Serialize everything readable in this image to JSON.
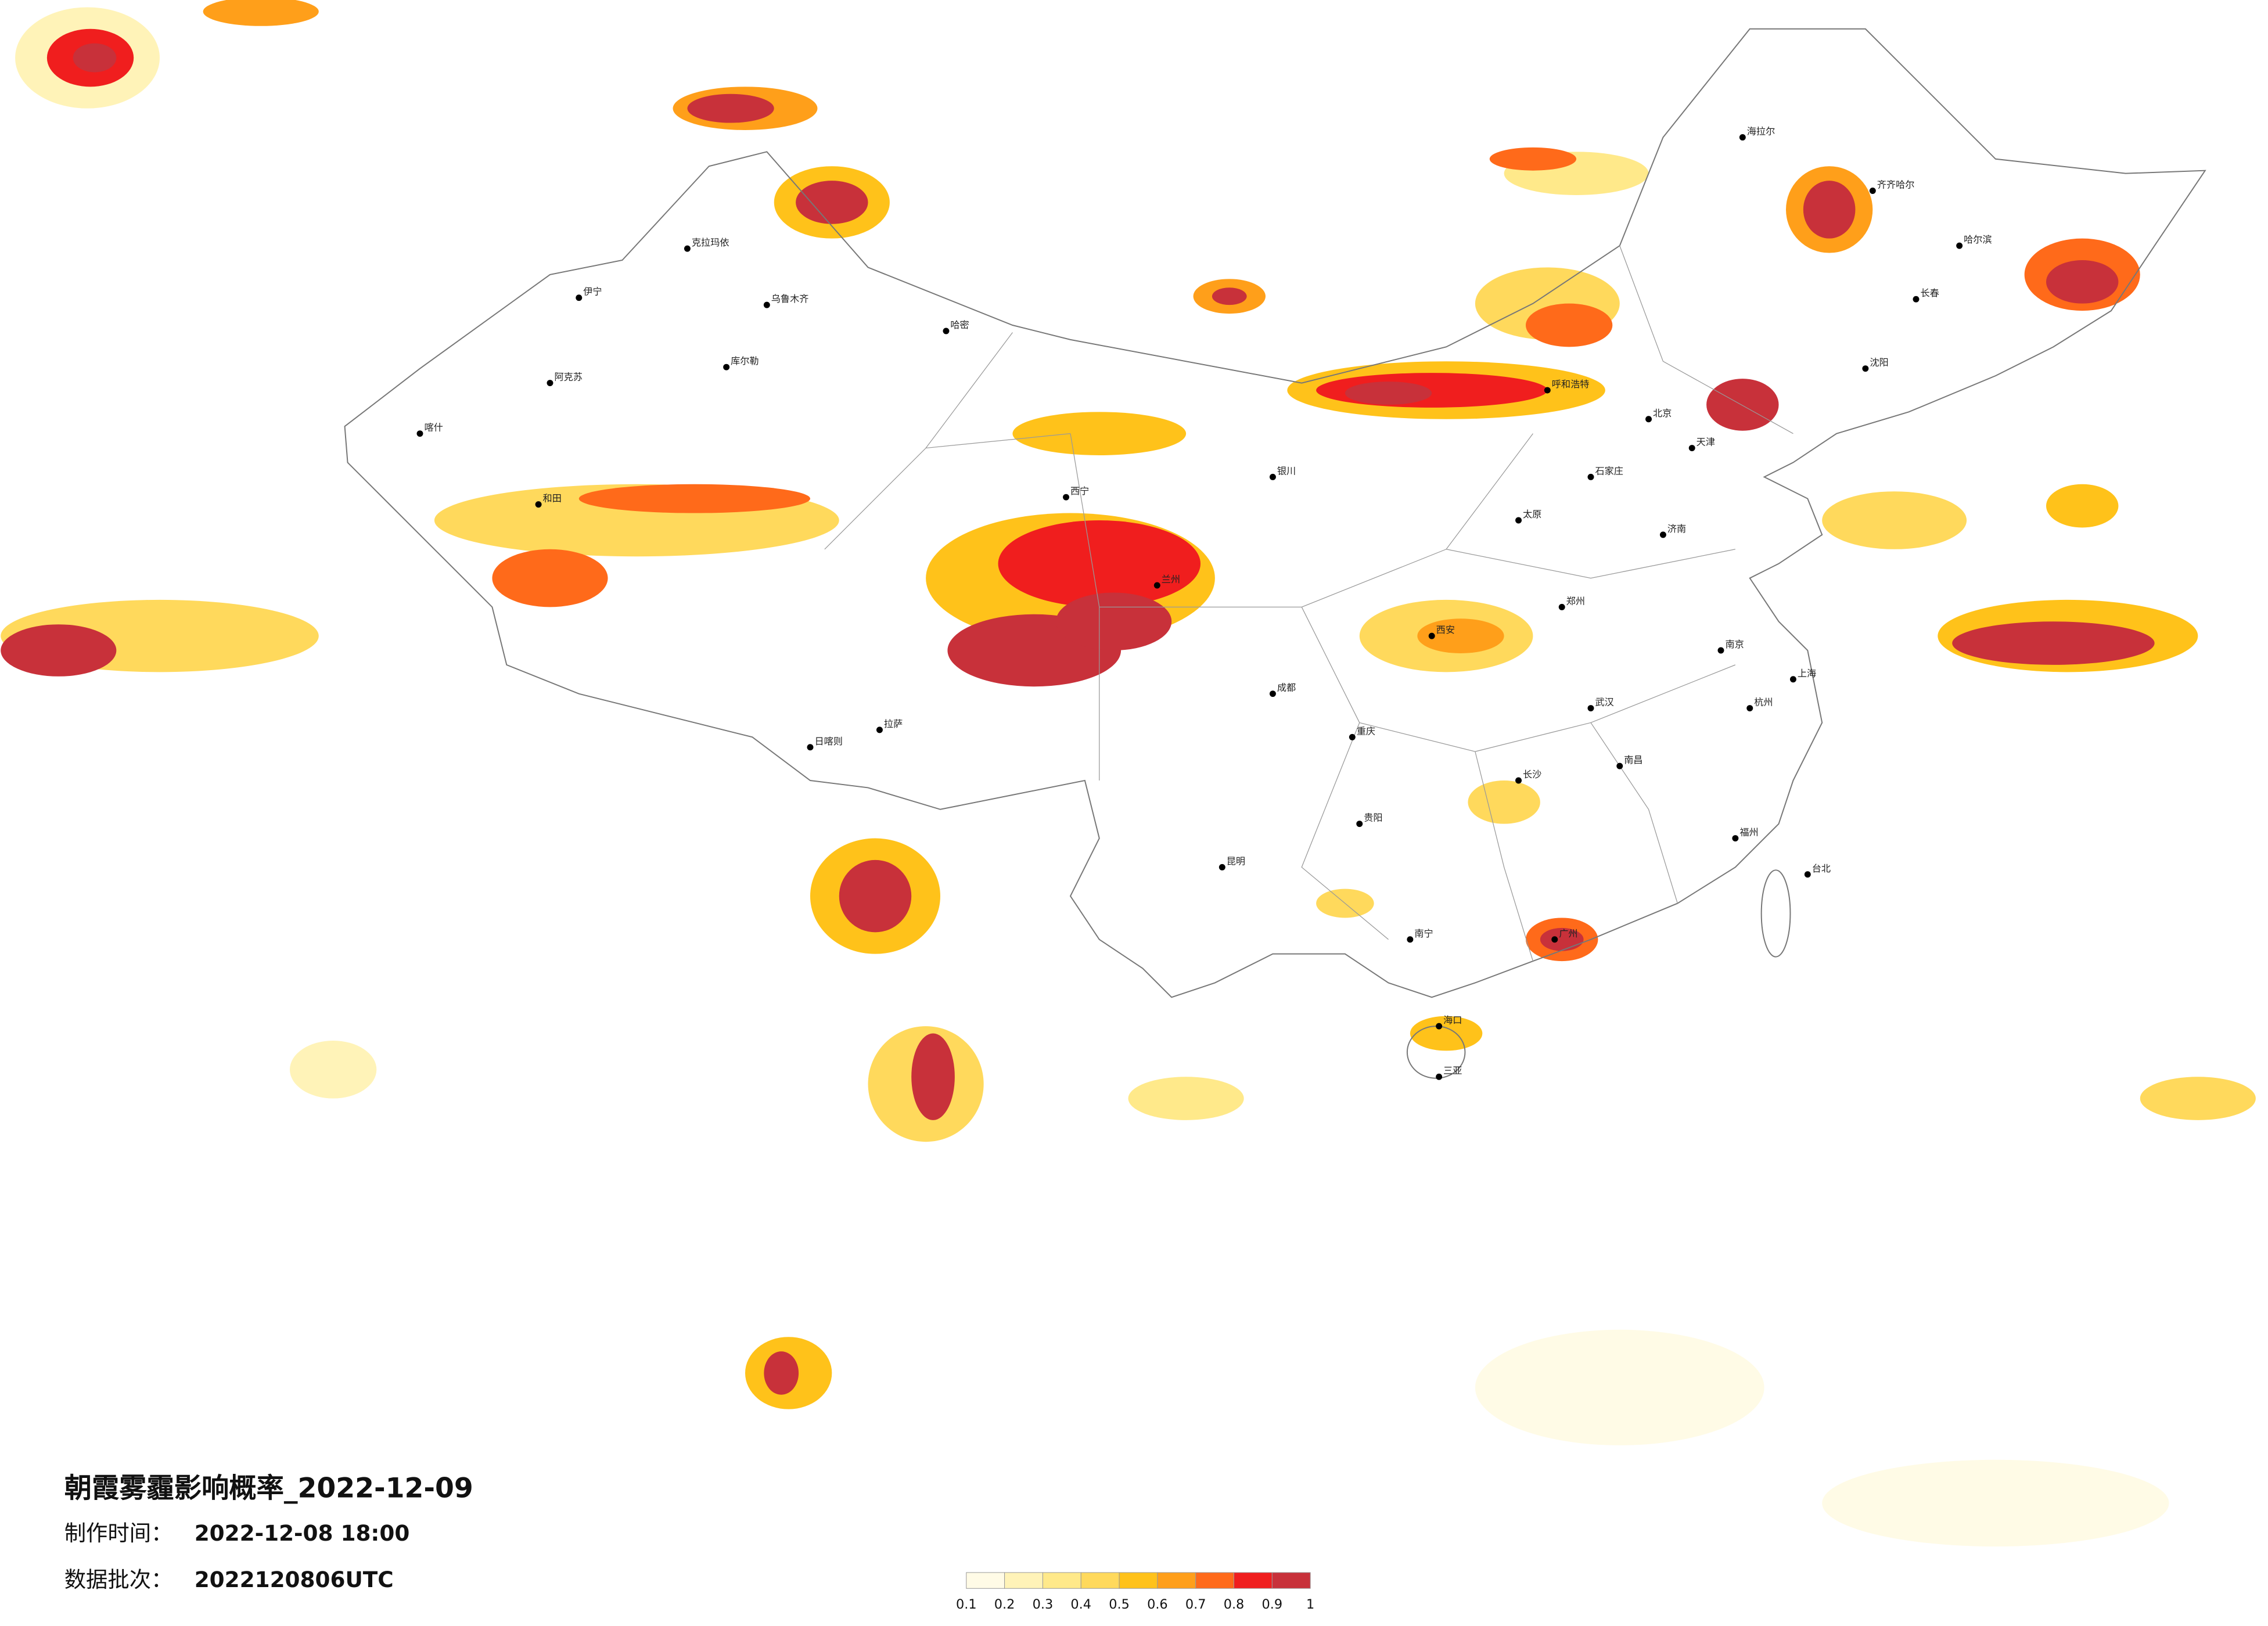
{
  "header": {
    "title": "朝霞雾霾影响概率_2022-12-09",
    "made_label": "制作时间：",
    "made_time": "2022-12-08 18:00",
    "batch_label": "数据批次：",
    "batch": "2022120806UTC"
  },
  "legend": {
    "colors": [
      "#fffbe6",
      "#fff3b8",
      "#ffe98a",
      "#ffd95c",
      "#ffc21a",
      "#ff9f1a",
      "#ff6a1a",
      "#f01e1e",
      "#c8313a"
    ],
    "ticks": [
      0.1,
      0.2,
      0.3,
      0.4,
      0.5,
      0.6,
      0.7,
      0.8,
      0.9,
      1
    ]
  },
  "cities": [
    "克拉玛依",
    "乌鲁木齐",
    "伊宁",
    "阿克苏",
    "喀什",
    "和田",
    "哈密",
    "库尔勒",
    "日喀则",
    "拉萨",
    "西宁",
    "兰州",
    "银川",
    "呼和浩特",
    "哈尔滨",
    "长春",
    "沈阳",
    "海拉尔",
    "齐齐哈尔",
    "北京",
    "天津",
    "石家庄",
    "太原",
    "西安",
    "郑州",
    "武汉",
    "南京",
    "上海",
    "杭州",
    "长沙",
    "南昌",
    "福州",
    "广州",
    "南宁",
    "昆明",
    "贵阳",
    "成都",
    "重庆",
    "济南",
    "台北",
    "海口",
    "三亚"
  ]
}
